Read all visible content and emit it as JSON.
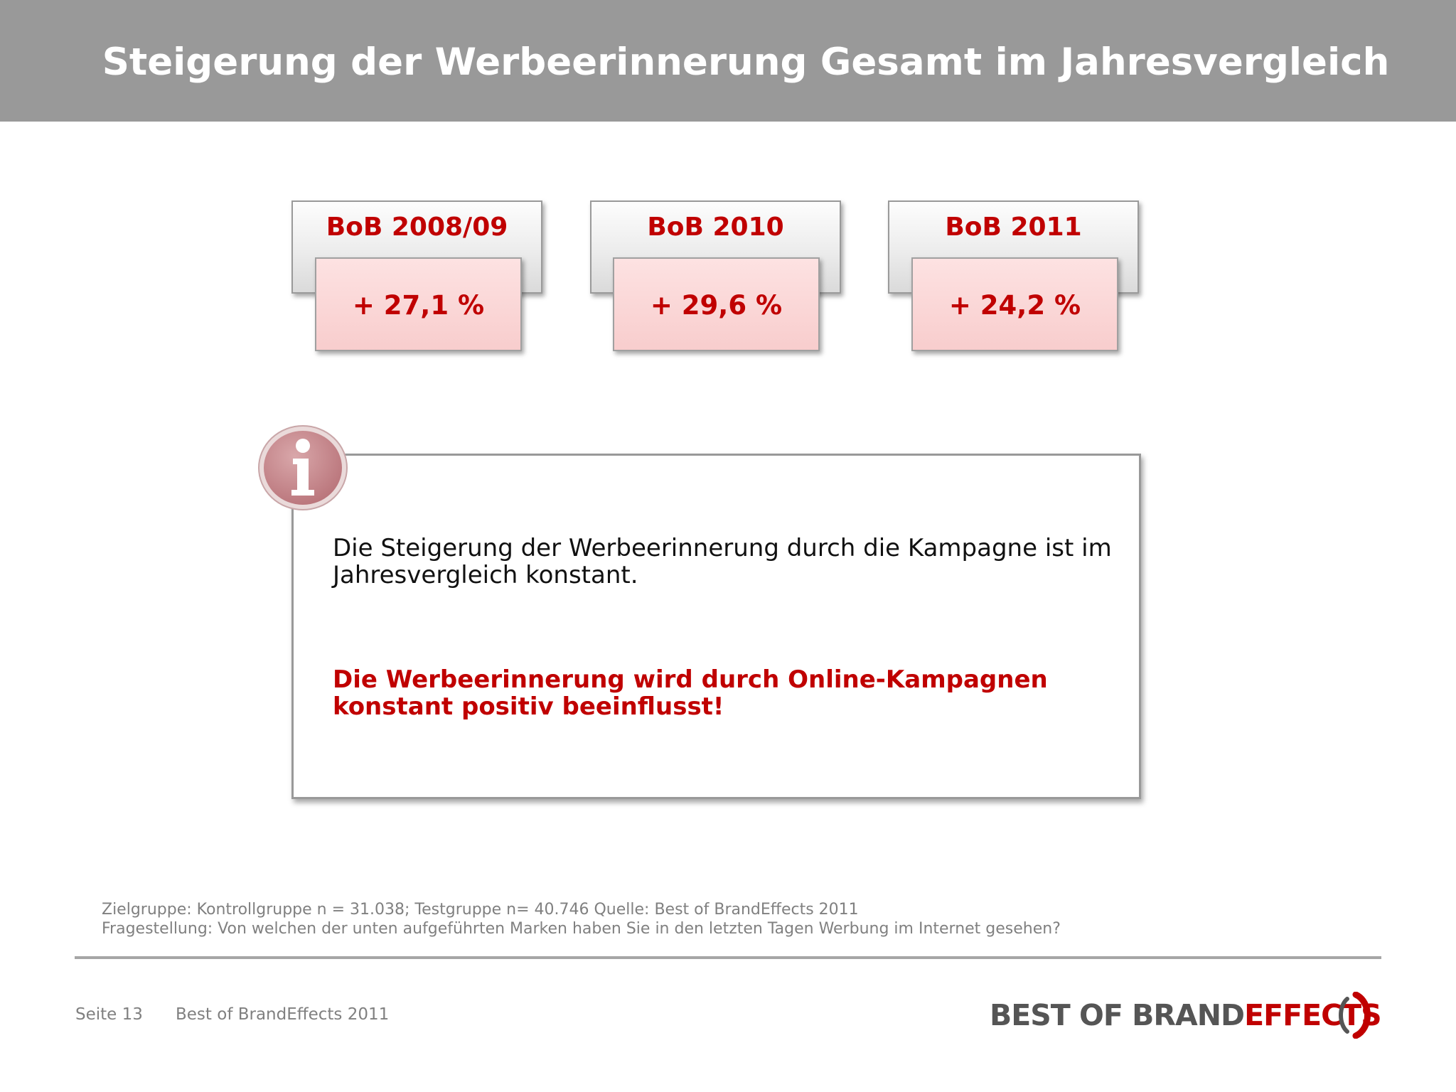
{
  "header": {
    "title": "Steigerung der Werbeerinnerung Gesamt im Jahresvergleich"
  },
  "cards": [
    {
      "label": "BoB 2008/09",
      "value": "+ 27,1 %"
    },
    {
      "label": "BoB 2010",
      "value": "+ 29,6 %"
    },
    {
      "label": "BoB 2011",
      "value": "+ 24,2 %"
    }
  ],
  "info": {
    "icon": "info-icon",
    "text": "Die Steigerung der Werbeerinnerung durch die Kampagne ist im Jahresvergleich konstant.",
    "emphasis": "Die Werbeerinnerung wird durch Online-Kampagnen konstant positiv beeinflusst!"
  },
  "footnote": {
    "line1": "Zielgruppe: Kontrollgruppe n = 31.038; Testgruppe n= 40.746 Quelle: Best of BrandEffects 2011",
    "line2": "Fragestellung: Von welchen der unten aufgeführten Marken haben Sie in den letzten Tagen Werbung im Internet gesehen?"
  },
  "footer": {
    "page": "Seite 13",
    "source": "Best of BrandEffects 2011"
  },
  "logo": {
    "part1": "BEST OF BRAND",
    "part2": "EFFECTS"
  },
  "colors": {
    "accent": "#c00000",
    "header_bg": "#999999",
    "card_front": "#f8cdcd",
    "info_icon": "#c98a8e"
  }
}
